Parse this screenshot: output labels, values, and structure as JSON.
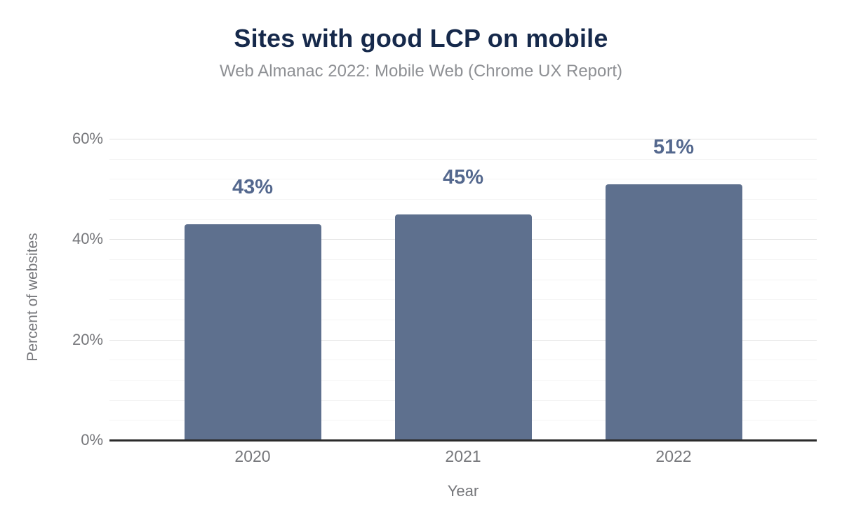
{
  "chart_data": {
    "type": "bar",
    "title": "Sites with good LCP on mobile",
    "subtitle": "Web Almanac 2022: Mobile Web (Chrome UX Report)",
    "xlabel": "Year",
    "ylabel": "Percent of websites",
    "categories": [
      "2020",
      "2021",
      "2022"
    ],
    "values": [
      43,
      45,
      51
    ],
    "value_labels": [
      "43%",
      "45%",
      "51%"
    ],
    "ylim": [
      0,
      60
    ],
    "yticks": [
      0,
      20,
      40,
      60
    ],
    "ytick_labels": [
      "0%",
      "20%",
      "40%",
      "60%"
    ],
    "minor_grid_step": 4,
    "grid": true,
    "legend": "none",
    "colors": {
      "background": "#ffffff",
      "bar": "#5e708e",
      "data_label": "#54688e",
      "title": "#16294b",
      "subtitle": "#8e9094",
      "tick_label": "#76777b",
      "axis_title": "#76777b",
      "baseline": "#2b2b2b",
      "major_gridline": "#e2e2e2",
      "minor_gridline": "#f4f4f4"
    }
  }
}
